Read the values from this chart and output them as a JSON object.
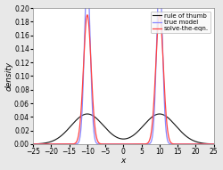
{
  "title": "",
  "xlabel": "x",
  "ylabel": "density",
  "xlim": [
    -25,
    25
  ],
  "ylim": [
    0,
    0.2
  ],
  "yticks": [
    0,
    0.02,
    0.04,
    0.06,
    0.08,
    0.1,
    0.12,
    0.14,
    0.16,
    0.18,
    0.2
  ],
  "xticks": [
    -25,
    -20,
    -15,
    -10,
    -5,
    0,
    5,
    10,
    15,
    20,
    25
  ],
  "legend_labels": [
    "rule of thumb",
    "true model",
    "solve-the-eqn."
  ],
  "mu1": -10,
  "mu2": 10,
  "sigma_true": 0.8,
  "sigma_rot": 4.5,
  "sigma_ste": 1.05,
  "weight": 0.5,
  "plot_bg": "#ffffff",
  "fig_bg": "#e8e8e8",
  "line_color_rot": "#111111",
  "line_color_true": "#8888ff",
  "line_color_ste": "#ff4444",
  "tick_fontsize": 5.5,
  "label_fontsize": 6.5,
  "legend_fontsize": 5.0
}
